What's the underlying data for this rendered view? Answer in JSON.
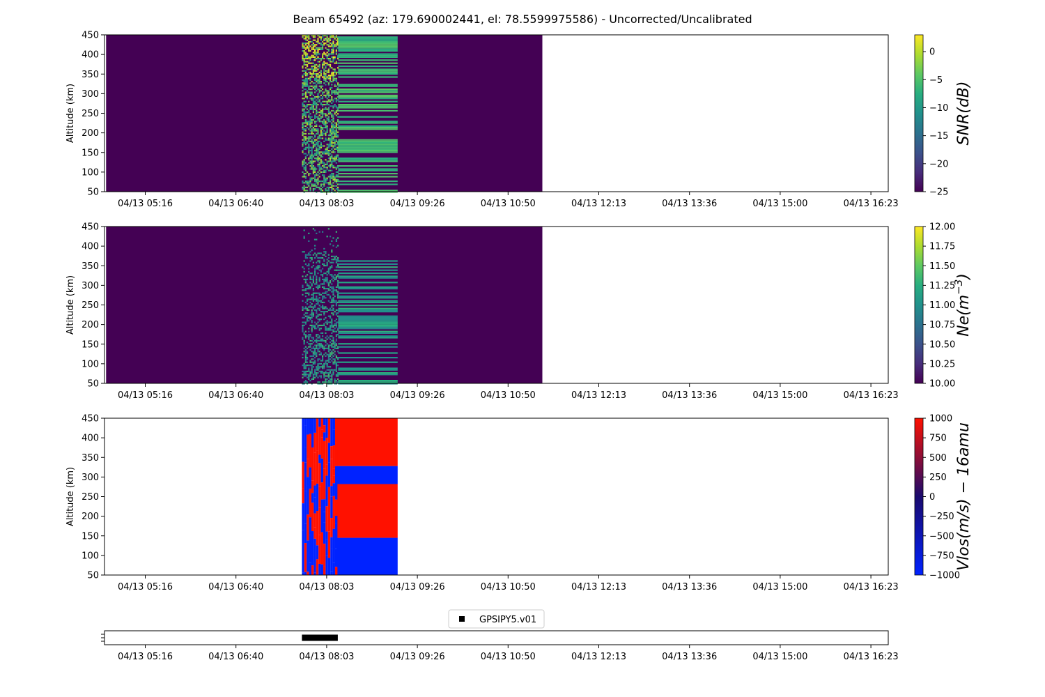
{
  "figure": {
    "title": "Beam 65492 (az: 179.690002441, el: 78.5599975586) - Uncorrected/Uncalibrated"
  },
  "chart_data": [
    {
      "type": "heatmap",
      "id": "snr",
      "ylabel": "Altitude (km)",
      "ylim": [
        50,
        450
      ],
      "yticks": [
        50,
        100,
        150,
        200,
        250,
        300,
        350,
        400,
        450
      ],
      "x_tick_labels": [
        "04/13 05:16",
        "04/13 06:40",
        "04/13 08:03",
        "04/13 09:26",
        "04/13 10:50",
        "04/13 12:13",
        "04/13 13:36",
        "04/13 15:00",
        "04/13 16:23"
      ],
      "colormap": "viridis",
      "colorbar": {
        "label": "SNR(dB)",
        "range": [
          -25,
          3
        ],
        "ticks": [
          -25,
          -20,
          -15,
          -10,
          -5,
          0
        ],
        "tick_labels": [
          "−25",
          "−20",
          "−15",
          "−10",
          "−5",
          "0"
        ]
      },
      "fill_period": [
        "04/13 04:40",
        "04/13 11:21"
      ],
      "active_period": [
        "04/13 07:40",
        "04/13 09:08"
      ],
      "background_value": -25
    },
    {
      "type": "heatmap",
      "id": "ne",
      "ylabel": "Altitude (km)",
      "ylim": [
        50,
        450
      ],
      "yticks": [
        50,
        100,
        150,
        200,
        250,
        300,
        350,
        400,
        450
      ],
      "x_tick_labels": [
        "04/13 05:16",
        "04/13 06:40",
        "04/13 08:03",
        "04/13 09:26",
        "04/13 10:50",
        "04/13 12:13",
        "04/13 13:36",
        "04/13 15:00",
        "04/13 16:23"
      ],
      "colormap": "viridis",
      "colorbar": {
        "label": "Ne(m^-3)",
        "range": [
          10,
          12
        ],
        "ticks": [
          10.0,
          10.25,
          10.5,
          10.75,
          11.0,
          11.25,
          11.5,
          11.75,
          12.0
        ],
        "tick_labels": [
          "10.00",
          "10.25",
          "10.50",
          "10.75",
          "11.00",
          "11.25",
          "11.50",
          "11.75",
          "12.00"
        ]
      },
      "fill_period": [
        "04/13 04:40",
        "04/13 11:21"
      ],
      "active_period": [
        "04/13 07:40",
        "04/13 09:08"
      ],
      "background_value": 10
    },
    {
      "type": "heatmap",
      "id": "vlos",
      "ylabel": "Altitude (km)",
      "ylim": [
        50,
        450
      ],
      "yticks": [
        50,
        100,
        150,
        200,
        250,
        300,
        350,
        400,
        450
      ],
      "x_tick_labels": [
        "04/13 05:16",
        "04/13 06:40",
        "04/13 08:03",
        "04/13 09:26",
        "04/13 10:50",
        "04/13 12:13",
        "04/13 13:36",
        "04/13 15:00",
        "04/13 16:23"
      ],
      "colormap": "blue-red",
      "colorbar": {
        "label": "Vlos(m/s) − 16amu",
        "range": [
          -1000,
          1000
        ],
        "ticks": [
          -1000,
          -750,
          -500,
          -250,
          0,
          250,
          500,
          750,
          1000
        ],
        "tick_labels": [
          "−1000",
          "−750",
          "−500",
          "−250",
          "0",
          "250",
          "500",
          "750",
          "1000"
        ]
      },
      "active_period": [
        "04/13 07:40",
        "04/13 09:08"
      ],
      "steady_bands": [
        {
          "from_km": 50,
          "to_km": 145,
          "value": -1000
        },
        {
          "from_km": 145,
          "to_km": 282,
          "value": 1000
        },
        {
          "from_km": 282,
          "to_km": 328,
          "value": -1000
        },
        {
          "from_km": 328,
          "to_km": 450,
          "value": 1000
        }
      ]
    },
    {
      "type": "scatter",
      "id": "experiment",
      "legend": [
        "GPSIPY5.v01"
      ],
      "legend_position": "top-center",
      "x_tick_labels": [
        "04/13 05:16",
        "04/13 06:40",
        "04/13 08:03",
        "04/13 09:26",
        "04/13 10:50",
        "04/13 12:13",
        "04/13 13:36",
        "04/13 15:00",
        "04/13 16:23"
      ],
      "period": [
        "04/13 07:40",
        "04/13 08:13"
      ]
    }
  ],
  "colors": {
    "viridis_low": "#440154",
    "viridis_high": "#fde725",
    "vlos_low": "#0022ff",
    "vlos_high": "#ff1100",
    "marker": "#000000"
  }
}
